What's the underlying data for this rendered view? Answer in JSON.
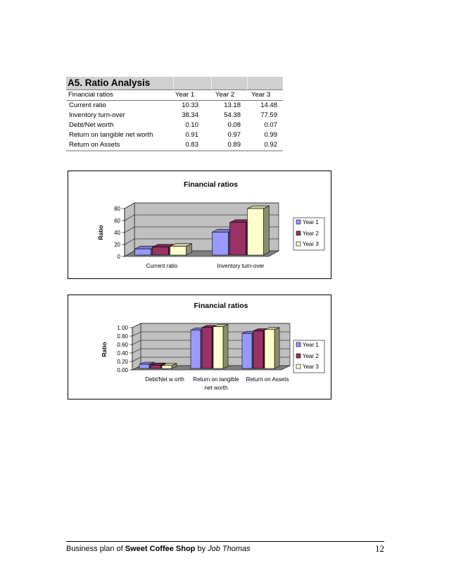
{
  "ratio_table": {
    "title": "A5. Ratio Analysis",
    "headers": [
      "Financial ratios",
      "Year 1",
      "Year 2",
      "Year 3"
    ],
    "rows": [
      {
        "label": "Current ratio",
        "values": [
          "10.33",
          "13.18",
          "14.48"
        ]
      },
      {
        "label": "Inventory turn-over",
        "values": [
          "38.34",
          "54.38",
          "77.59"
        ]
      },
      {
        "label": "Debt/Net worth",
        "values": [
          "0.10",
          "0.08",
          "0.07"
        ]
      },
      {
        "label": "Return on tangible net worth",
        "values": [
          "0.91",
          "0.97",
          "0.99"
        ]
      },
      {
        "label": "Return on Assets",
        "values": [
          "0.83",
          "0.89",
          "0.92"
        ]
      }
    ]
  },
  "colors": {
    "year1": "#9999ff",
    "year2": "#993366",
    "year3": "#ffffcc",
    "wall": "#c0c0c0",
    "floor": "#808080"
  },
  "chart_data": [
    {
      "type": "bar",
      "title": "Financial ratios",
      "ylabel": "Ratio",
      "xlabel": "",
      "categories": [
        "Current ratio",
        "Inventory turn-over"
      ],
      "series": [
        {
          "name": "Year 1",
          "values": [
            10.33,
            38.34
          ]
        },
        {
          "name": "Year 2",
          "values": [
            13.18,
            54.38
          ]
        },
        {
          "name": "Year 3",
          "values": [
            14.48,
            77.59
          ]
        }
      ],
      "ylim": [
        0,
        80
      ],
      "yticks": [
        "0",
        "20",
        "40",
        "60",
        "80"
      ],
      "grid": true,
      "legend": "right"
    },
    {
      "type": "bar",
      "title": "Financial ratios",
      "ylabel": "Ratio",
      "xlabel": "",
      "categories": [
        "Debt/Net w orth",
        "Return on tangible net worth",
        "Return on Assets"
      ],
      "series": [
        {
          "name": "Year 1",
          "values": [
            0.1,
            0.91,
            0.83
          ]
        },
        {
          "name": "Year 2",
          "values": [
            0.08,
            0.97,
            0.89
          ]
        },
        {
          "name": "Year 3",
          "values": [
            0.07,
            0.99,
            0.92
          ]
        }
      ],
      "ylim": [
        0,
        1
      ],
      "yticks": [
        "0.00",
        "0.20",
        "0.40",
        "0.60",
        "0.80",
        "1.00"
      ],
      "grid": true,
      "legend": "right"
    }
  ],
  "footer": {
    "prefix": "Business plan of ",
    "brand": "Sweet Coffee Shop",
    "by": " by ",
    "author": "Job Thomas",
    "page_number": "12"
  }
}
